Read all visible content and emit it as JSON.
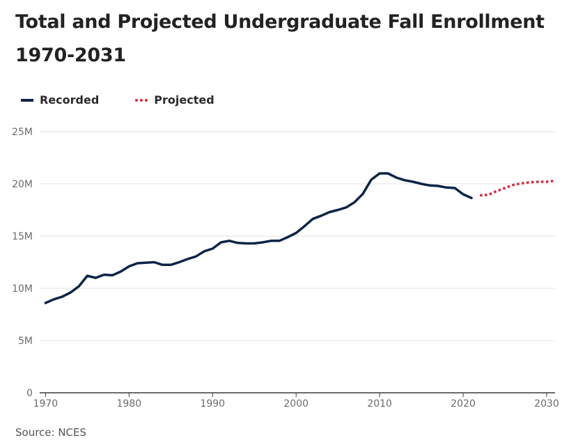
{
  "header": {
    "title": "Total and Projected Undergraduate Fall Enrollment 1970-2031"
  },
  "legend": {
    "recorded_label": "Recorded",
    "projected_label": "Projected"
  },
  "footer": {
    "source": "Source: NCES"
  },
  "colors": {
    "recorded": "#0b2447",
    "projected": "#d8263b",
    "grid": "#e3e3e3",
    "axis": "#3a3a3a"
  },
  "chart_data": {
    "type": "line",
    "title": "Total and Projected Undergraduate Fall Enrollment 1970-2031",
    "xlabel": "",
    "ylabel": "",
    "xlim": [
      1970,
      2031
    ],
    "ylim": [
      0,
      25000000
    ],
    "x_ticks": [
      1970,
      1980,
      1990,
      2000,
      2010,
      2020,
      2030
    ],
    "x_tick_labels": [
      "1970",
      "1980",
      "1990",
      "2000",
      "2010",
      "2020",
      "2030"
    ],
    "y_ticks": [
      0,
      5000000,
      10000000,
      15000000,
      20000000,
      25000000
    ],
    "y_tick_labels": [
      "0",
      "5M",
      "10M",
      "15M",
      "20M",
      "25M"
    ],
    "grid": true,
    "legend_position": "top-left",
    "series": [
      {
        "name": "Recorded",
        "style": "solid",
        "x": [
          1970,
          1971,
          1972,
          1973,
          1974,
          1975,
          1976,
          1977,
          1978,
          1979,
          1980,
          1981,
          1982,
          1983,
          1984,
          1985,
          1986,
          1987,
          1988,
          1989,
          1990,
          1991,
          1992,
          1993,
          1994,
          1995,
          1996,
          1997,
          1998,
          1999,
          2000,
          2001,
          2002,
          2003,
          2004,
          2005,
          2006,
          2007,
          2008,
          2009,
          2010,
          2011,
          2012,
          2013,
          2014,
          2015,
          2016,
          2017,
          2018,
          2019,
          2020,
          2021
        ],
        "values": [
          8600000,
          8950000,
          9200000,
          9600000,
          10200000,
          11200000,
          11000000,
          11300000,
          11250000,
          11600000,
          12100000,
          12400000,
          12450000,
          12500000,
          12250000,
          12250000,
          12500000,
          12800000,
          13050000,
          13550000,
          13800000,
          14400000,
          14550000,
          14350000,
          14300000,
          14300000,
          14400000,
          14550000,
          14550000,
          14900000,
          15300000,
          15950000,
          16650000,
          16950000,
          17300000,
          17500000,
          17750000,
          18250000,
          19050000,
          20400000,
          21000000,
          21000000,
          20600000,
          20350000,
          20200000,
          20000000,
          19850000,
          19800000,
          19650000,
          19600000,
          19000000,
          18650000
        ]
      },
      {
        "name": "Projected",
        "style": "dotted",
        "x": [
          2022,
          2023,
          2024,
          2025,
          2026,
          2027,
          2028,
          2029,
          2030,
          2031
        ],
        "values": [
          18900000,
          18950000,
          19300000,
          19600000,
          19900000,
          20050000,
          20150000,
          20200000,
          20200000,
          20300000
        ]
      }
    ]
  }
}
